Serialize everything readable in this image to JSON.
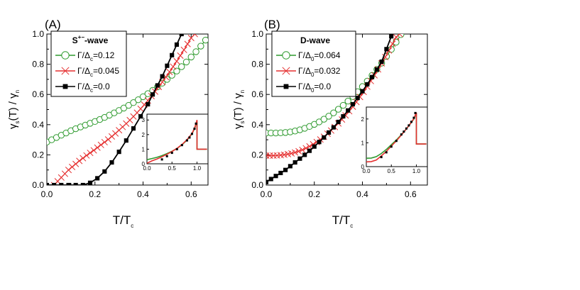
{
  "chart_data": [
    {
      "type": "scatter",
      "panel_label": "(A)",
      "legend_title": {
        "base": "S",
        "sup": "+−",
        "rest": "-wave"
      },
      "xlabel": {
        "base": "T/T",
        "sub": "c"
      },
      "ylabel": {
        "a": "γ",
        "a_sub": "s",
        "b": "(T) / γ",
        "b_sub": "n"
      },
      "xlim": [
        0,
        0.67
      ],
      "ylim": [
        0,
        1.0
      ],
      "xticks": [
        "0.0",
        "0.2",
        "0.4",
        "0.6"
      ],
      "yticks": [
        "0.0",
        "0.2",
        "0.4",
        "0.6",
        "0.8",
        "1.0"
      ],
      "legend_placement": "top-left",
      "series": [
        {
          "label": {
            "greek": "Γ/Δ",
            "sub": "c",
            "value": "=0.12"
          },
          "color": "#2e9a2e",
          "marker": "open-circle",
          "x": [
            0.0,
            0.02,
            0.04,
            0.06,
            0.08,
            0.1,
            0.12,
            0.14,
            0.16,
            0.18,
            0.2,
            0.22,
            0.24,
            0.26,
            0.28,
            0.3,
            0.32,
            0.34,
            0.36,
            0.38,
            0.4,
            0.42,
            0.44,
            0.46,
            0.48,
            0.5,
            0.52,
            0.54,
            0.56,
            0.58,
            0.6,
            0.62,
            0.64,
            0.66
          ],
          "y": [
            0.285,
            0.3,
            0.315,
            0.33,
            0.345,
            0.36,
            0.373,
            0.385,
            0.397,
            0.409,
            0.421,
            0.434,
            0.448,
            0.463,
            0.478,
            0.494,
            0.51,
            0.528,
            0.546,
            0.565,
            0.585,
            0.605,
            0.627,
            0.65,
            0.675,
            0.7,
            0.727,
            0.755,
            0.784,
            0.815,
            0.848,
            0.883,
            0.92,
            0.96
          ]
        },
        {
          "label": {
            "greek": "Γ/Δ",
            "sub": "c",
            "value": "=0.045"
          },
          "color": "#e53030",
          "marker": "x",
          "x": [
            0.03,
            0.045,
            0.06,
            0.075,
            0.09,
            0.105,
            0.12,
            0.135,
            0.15,
            0.165,
            0.18,
            0.195,
            0.21,
            0.225,
            0.24,
            0.255,
            0.27,
            0.285,
            0.3,
            0.315,
            0.33,
            0.345,
            0.36,
            0.375,
            0.39,
            0.405,
            0.42,
            0.435,
            0.45,
            0.465,
            0.48,
            0.495,
            0.51,
            0.525,
            0.54,
            0.555,
            0.57,
            0.585,
            0.6,
            0.615
          ],
          "y": [
            0.0,
            0.025,
            0.05,
            0.075,
            0.1,
            0.12,
            0.14,
            0.16,
            0.178,
            0.196,
            0.213,
            0.23,
            0.248,
            0.266,
            0.284,
            0.302,
            0.322,
            0.342,
            0.363,
            0.385,
            0.407,
            0.43,
            0.454,
            0.479,
            0.505,
            0.532,
            0.56,
            0.589,
            0.619,
            0.65,
            0.682,
            0.715,
            0.749,
            0.784,
            0.82,
            0.857,
            0.895,
            0.934,
            0.974,
            1.0
          ]
        },
        {
          "label": {
            "greek": "Γ/Δ",
            "sub": "c",
            "value": "=0.0"
          },
          "color": "#000000",
          "marker": "filled-square",
          "x": [
            0.0,
            0.03,
            0.06,
            0.09,
            0.12,
            0.15,
            0.18,
            0.21,
            0.24,
            0.27,
            0.3,
            0.33,
            0.36,
            0.39,
            0.42,
            0.44,
            0.46,
            0.48,
            0.5,
            0.52,
            0.54,
            0.56
          ],
          "y": [
            0.0,
            0.0,
            0.0,
            0.0,
            0.0,
            0.0,
            0.015,
            0.045,
            0.09,
            0.15,
            0.22,
            0.295,
            0.375,
            0.455,
            0.535,
            0.6,
            0.66,
            0.72,
            0.79,
            0.86,
            0.93,
            1.0
          ]
        }
      ],
      "inset": {
        "xlim": [
          0,
          1.22
        ],
        "ylim": [
          0,
          3.4
        ],
        "xticks": [
          "0.0",
          "0.5",
          "1.0"
        ],
        "yticks": [
          "0",
          "1",
          "2",
          "3"
        ],
        "series": [
          {
            "color": "#2e9a2e",
            "x": [
              0.0,
              0.1,
              0.2,
              0.3,
              0.4,
              0.5,
              0.6,
              0.7,
              0.8,
              0.9,
              0.95,
              0.98,
              1.0,
              1.0,
              1.1,
              1.2
            ],
            "y": [
              0.28,
              0.36,
              0.44,
              0.56,
              0.7,
              0.86,
              1.05,
              1.3,
              1.62,
              2.05,
              2.4,
              2.7,
              2.95,
              1.0,
              1.0,
              1.0
            ]
          },
          {
            "color": "#e53030",
            "x": [
              0.0,
              0.1,
              0.2,
              0.3,
              0.4,
              0.5,
              0.6,
              0.7,
              0.8,
              0.9,
              0.95,
              0.98,
              1.0,
              1.0,
              1.1,
              1.2
            ],
            "y": [
              0.04,
              0.2,
              0.33,
              0.48,
              0.65,
              0.84,
              1.06,
              1.32,
              1.65,
              2.08,
              2.45,
              2.75,
              3.0,
              1.0,
              1.0,
              1.0
            ]
          },
          {
            "color": "#000000",
            "marker": "filled-square",
            "x": [
              0.3,
              0.4,
              0.5,
              0.6,
              0.7,
              0.8,
              0.85,
              0.9,
              0.95,
              0.98
            ],
            "y": [
              0.3,
              0.52,
              0.75,
              1.0,
              1.28,
              1.6,
              1.8,
              2.05,
              2.4,
              2.75
            ]
          }
        ]
      }
    },
    {
      "type": "scatter",
      "panel_label": "(B)",
      "legend_title": {
        "base": "D-wave",
        "sup": "",
        "rest": ""
      },
      "xlabel": {
        "base": "T/T",
        "sub": "c"
      },
      "ylabel": {
        "a": "γ",
        "a_sub": "s",
        "b": "(T) / γ",
        "b_sub": "n"
      },
      "xlim": [
        0,
        0.67
      ],
      "ylim": [
        0,
        1.0
      ],
      "xticks": [
        "0.0",
        "0.2",
        "0.4",
        "0.6"
      ],
      "yticks": [
        "0.0",
        "0.2",
        "0.4",
        "0.6",
        "0.8",
        "1.0"
      ],
      "legend_placement": "top-left",
      "series": [
        {
          "label": {
            "greek": "Γ/Δ",
            "sub": "0",
            "value": "=0.064"
          },
          "color": "#2e9a2e",
          "marker": "open-circle",
          "x": [
            0.0,
            0.02,
            0.04,
            0.06,
            0.08,
            0.1,
            0.12,
            0.14,
            0.16,
            0.18,
            0.2,
            0.22,
            0.24,
            0.26,
            0.28,
            0.3,
            0.32,
            0.34,
            0.36,
            0.38,
            0.4,
            0.42,
            0.44,
            0.46,
            0.48,
            0.5,
            0.52,
            0.54,
            0.56
          ],
          "y": [
            0.345,
            0.345,
            0.345,
            0.346,
            0.348,
            0.352,
            0.358,
            0.366,
            0.376,
            0.388,
            0.402,
            0.418,
            0.436,
            0.456,
            0.478,
            0.502,
            0.528,
            0.556,
            0.586,
            0.618,
            0.652,
            0.688,
            0.726,
            0.766,
            0.808,
            0.852,
            0.898,
            0.946,
            0.996
          ]
        },
        {
          "label": {
            "greek": "Γ/Δ",
            "sub": "0",
            "value": "=0.032"
          },
          "color": "#e53030",
          "marker": "x",
          "x": [
            0.0,
            0.015,
            0.03,
            0.045,
            0.06,
            0.075,
            0.09,
            0.105,
            0.12,
            0.135,
            0.15,
            0.165,
            0.18,
            0.195,
            0.21,
            0.225,
            0.24,
            0.255,
            0.27,
            0.285,
            0.3,
            0.315,
            0.33,
            0.345,
            0.36,
            0.375,
            0.39,
            0.405,
            0.42,
            0.435,
            0.45,
            0.465,
            0.48,
            0.495,
            0.51,
            0.525,
            0.54,
            0.555
          ],
          "y": [
            0.195,
            0.195,
            0.195,
            0.196,
            0.198,
            0.201,
            0.205,
            0.21,
            0.216,
            0.224,
            0.233,
            0.244,
            0.256,
            0.27,
            0.285,
            0.302,
            0.32,
            0.34,
            0.361,
            0.384,
            0.408,
            0.434,
            0.461,
            0.489,
            0.519,
            0.55,
            0.583,
            0.617,
            0.652,
            0.689,
            0.727,
            0.766,
            0.806,
            0.848,
            0.891,
            0.935,
            0.98,
            1.0
          ]
        },
        {
          "label": {
            "greek": "Γ/Δ",
            "sub": "0",
            "value": "=0.0"
          },
          "color": "#000000",
          "marker": "filled-square",
          "x": [
            0.0,
            0.02,
            0.04,
            0.06,
            0.08,
            0.1,
            0.12,
            0.14,
            0.16,
            0.18,
            0.2,
            0.22,
            0.24,
            0.26,
            0.28,
            0.3,
            0.32,
            0.34,
            0.36,
            0.38,
            0.4,
            0.42,
            0.44,
            0.46,
            0.48,
            0.5,
            0.52
          ],
          "y": [
            0.02,
            0.04,
            0.06,
            0.08,
            0.1,
            0.125,
            0.15,
            0.175,
            0.2,
            0.227,
            0.255,
            0.285,
            0.315,
            0.348,
            0.382,
            0.418,
            0.455,
            0.494,
            0.535,
            0.577,
            0.621,
            0.667,
            0.715,
            0.765,
            0.817,
            0.9,
            0.985
          ]
        }
      ],
      "inset": {
        "xlim": [
          0,
          1.22
        ],
        "ylim": [
          0,
          2.5
        ],
        "xticks": [
          "0.0",
          "0.5",
          "1.0"
        ],
        "yticks": [
          "0",
          "1",
          "2"
        ],
        "series": [
          {
            "color": "#2e9a2e",
            "x": [
              0.0,
              0.1,
              0.2,
              0.3,
              0.4,
              0.5,
              0.6,
              0.7,
              0.8,
              0.9,
              0.95,
              0.98,
              1.0,
              1.0,
              1.1,
              1.2
            ],
            "y": [
              0.35,
              0.36,
              0.42,
              0.55,
              0.72,
              0.92,
              1.12,
              1.34,
              1.58,
              1.85,
              2.0,
              2.15,
              2.25,
              0.95,
              0.95,
              0.95
            ]
          },
          {
            "color": "#e53030",
            "x": [
              0.0,
              0.1,
              0.2,
              0.3,
              0.4,
              0.5,
              0.6,
              0.7,
              0.8,
              0.9,
              0.95,
              0.98,
              1.0,
              1.0,
              1.1,
              1.2
            ],
            "y": [
              0.2,
              0.21,
              0.28,
              0.45,
              0.64,
              0.86,
              1.08,
              1.32,
              1.58,
              1.86,
              2.02,
              2.17,
              2.27,
              0.95,
              0.95,
              0.95
            ]
          },
          {
            "color": "#000000",
            "marker": "filled-square",
            "x": [
              0.3,
              0.4,
              0.5,
              0.6,
              0.7,
              0.75,
              0.8,
              0.85,
              0.9,
              0.95,
              0.98
            ],
            "y": [
              0.4,
              0.6,
              0.84,
              1.08,
              1.35,
              1.47,
              1.6,
              1.73,
              1.88,
              2.05,
              2.25
            ]
          }
        ]
      }
    }
  ]
}
